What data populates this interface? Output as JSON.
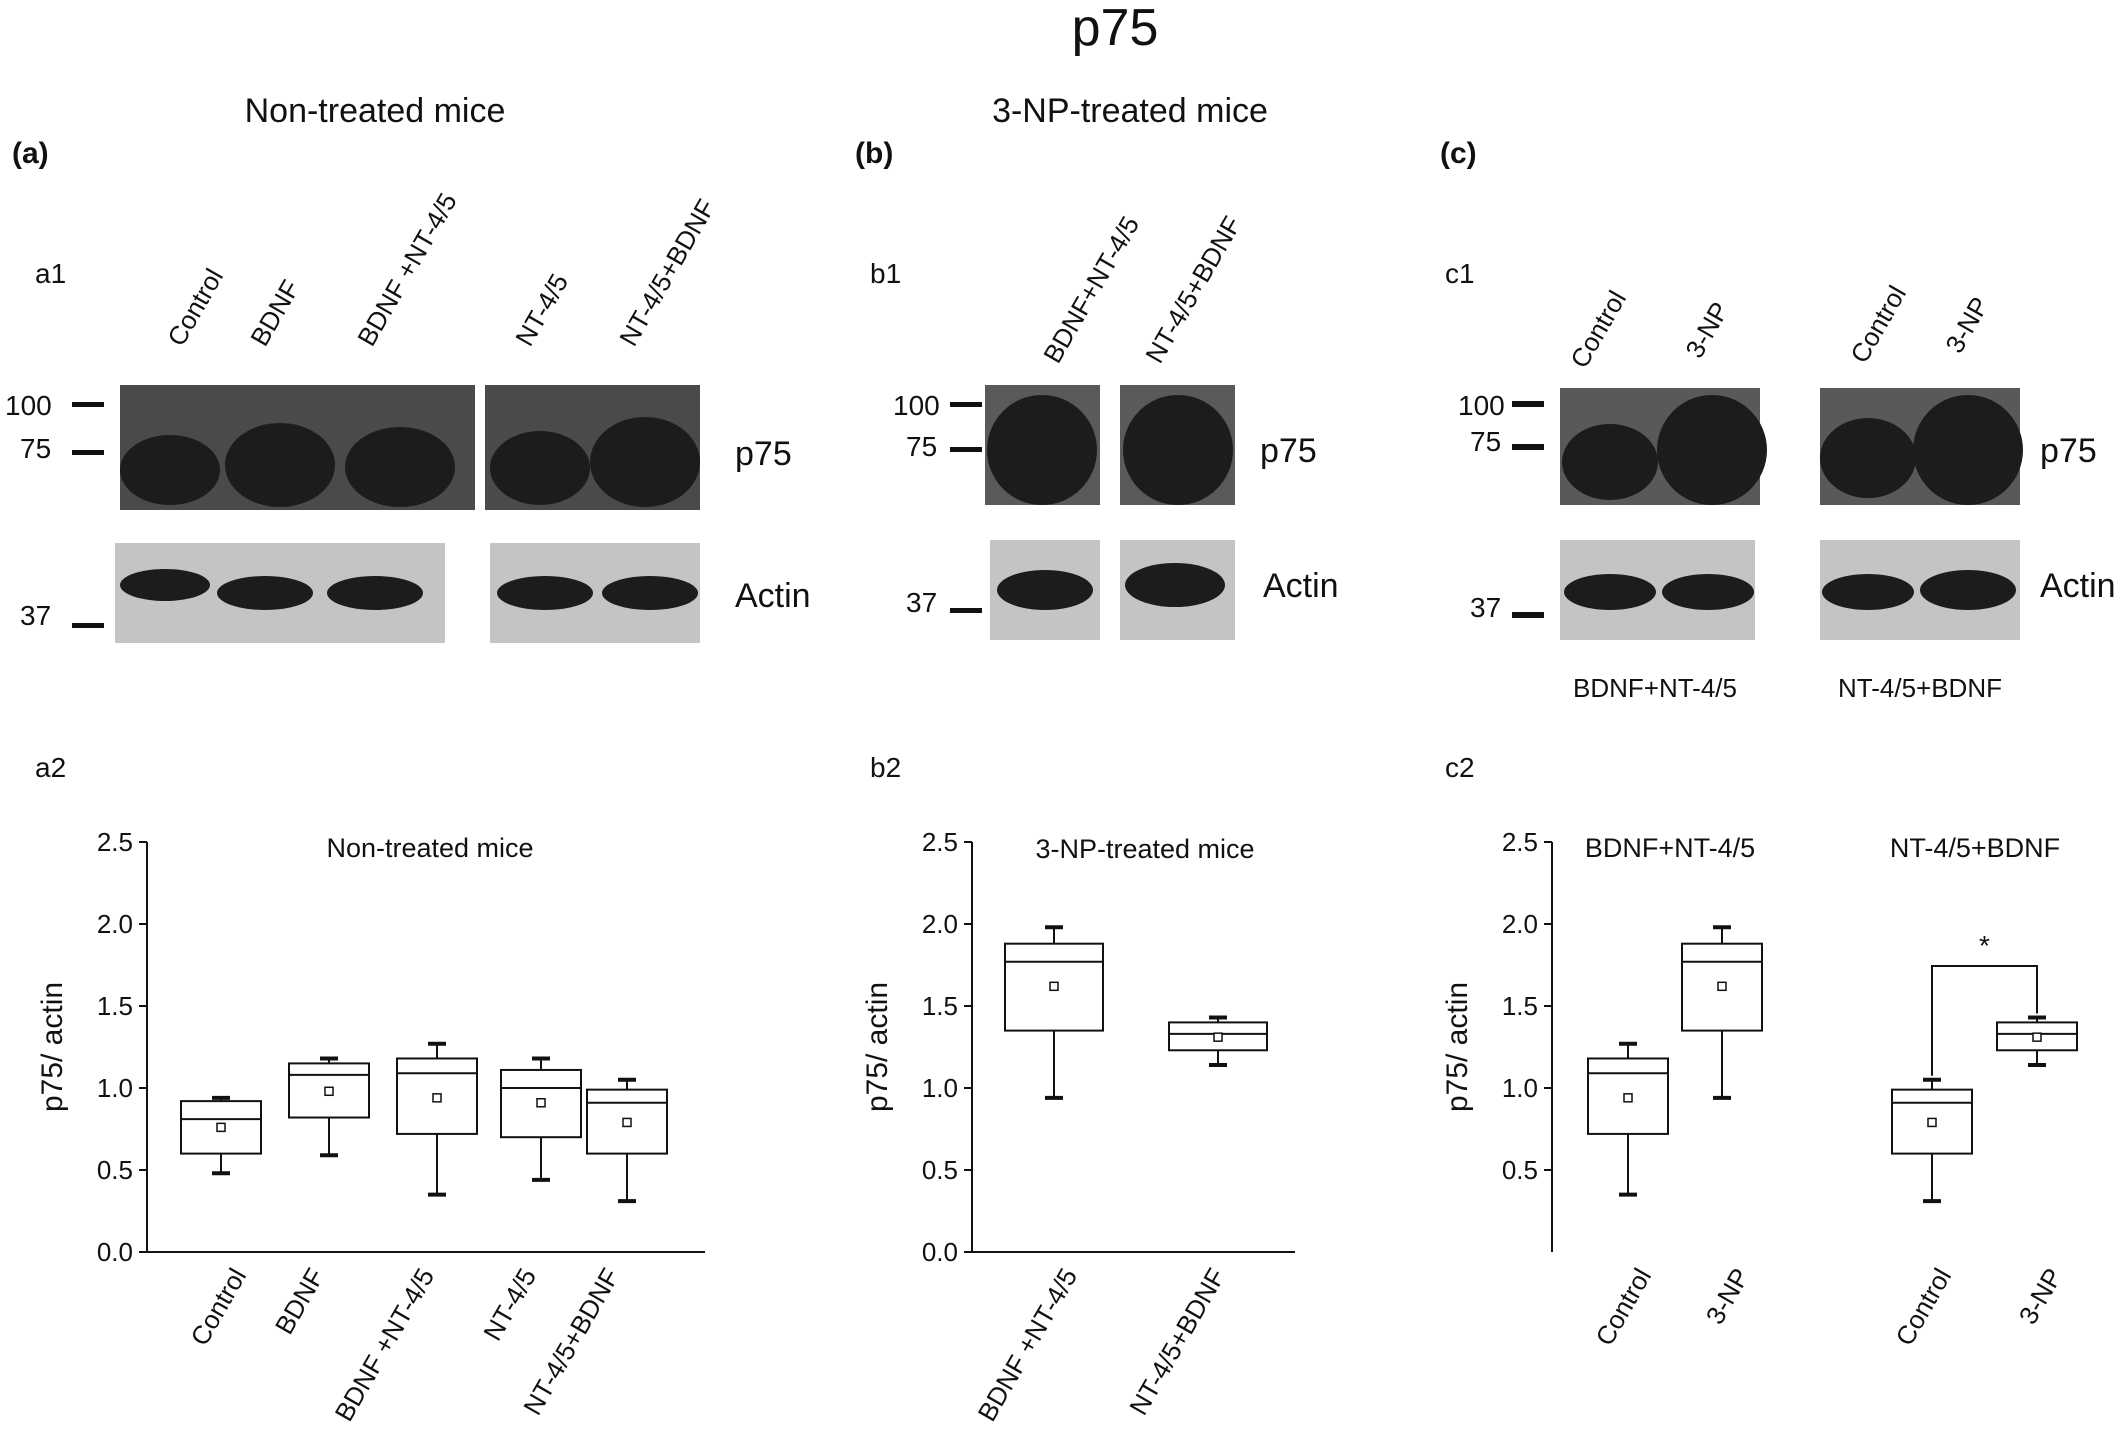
{
  "figure": {
    "title": "p75",
    "panel_a_heading": "Non-treated mice",
    "panel_b_heading": "3-NP-treated mice",
    "panel_a_letter": "(a)",
    "panel_b_letter": "(b)",
    "panel_c_letter": "(c)"
  },
  "blots": {
    "a1": {
      "label": "a1",
      "lanes": [
        "Control",
        "BDNF",
        "BDNF +NT-4/5",
        "NT-4/5",
        "NT-4/5+BDNF"
      ],
      "markers": [
        "100",
        "75",
        "37"
      ],
      "protein_labels": [
        "p75",
        "Actin"
      ]
    },
    "b1": {
      "label": "b1",
      "lanes": [
        "BDNF+NT-4/5",
        "NT-4/5+BDNF"
      ],
      "markers": [
        "100",
        "75",
        "37"
      ],
      "protein_labels": [
        "p75",
        "Actin"
      ]
    },
    "c1": {
      "label": "c1",
      "lanes": [
        "Control",
        "3-NP",
        "Control",
        "3-NP"
      ],
      "markers": [
        "100",
        "75",
        "37"
      ],
      "protein_labels": [
        "p75",
        "Actin"
      ],
      "group_labels": [
        "BDNF+NT-4/5",
        "NT-4/5+BDNF"
      ]
    }
  },
  "chart_data": [
    {
      "panel": "a2",
      "type": "box",
      "title": "Non-treated mice",
      "ylabel": "p75/ actin",
      "ylim": [
        0,
        2.5
      ],
      "yticks": [
        "0.0",
        "0.5",
        "1.0",
        "1.5",
        "2.0",
        "2.5"
      ],
      "categories": [
        "Control",
        "BDNF",
        "BDNF +NT-4/5",
        "NT-4/5",
        "NT-4/5+BDNF"
      ],
      "boxes": [
        {
          "min": 0.48,
          "q1": 0.6,
          "median": 0.81,
          "q3": 0.92,
          "max": 0.94,
          "mean": 0.76
        },
        {
          "min": 0.59,
          "q1": 0.82,
          "median": 1.08,
          "q3": 1.15,
          "max": 1.18,
          "mean": 0.98
        },
        {
          "min": 0.35,
          "q1": 0.72,
          "median": 1.09,
          "q3": 1.18,
          "max": 1.27,
          "mean": 0.94
        },
        {
          "min": 0.44,
          "q1": 0.7,
          "median": 1.0,
          "q3": 1.11,
          "max": 1.18,
          "mean": 0.91
        },
        {
          "min": 0.31,
          "q1": 0.6,
          "median": 0.91,
          "q3": 0.99,
          "max": 1.05,
          "mean": 0.79
        }
      ]
    },
    {
      "panel": "b2",
      "type": "box",
      "title": "3-NP-treated mice",
      "ylabel": "p75/ actin",
      "ylim": [
        0,
        2.5
      ],
      "yticks": [
        "0.0",
        "0.5",
        "1.0",
        "1.5",
        "2.0",
        "2.5"
      ],
      "categories": [
        "BDNF +NT-4/5",
        "NT-4/5+BDNF"
      ],
      "boxes": [
        {
          "min": 0.94,
          "q1": 1.35,
          "median": 1.77,
          "q3": 1.88,
          "max": 1.98,
          "mean": 1.62
        },
        {
          "min": 1.14,
          "q1": 1.23,
          "median": 1.33,
          "q3": 1.4,
          "max": 1.43,
          "mean": 1.31
        }
      ]
    },
    {
      "panel": "c2",
      "type": "box",
      "ylabel": "p75/ actin",
      "ylim": [
        0,
        2.5
      ],
      "yticks": [
        "0.5",
        "1.0",
        "1.5",
        "2.0",
        "2.5"
      ],
      "group_labels": [
        "BDNF+NT-4/5",
        "NT-4/5+BDNF"
      ],
      "categories": [
        "Control",
        "3-NP",
        "Control",
        "3-NP"
      ],
      "boxes": [
        {
          "min": 0.35,
          "q1": 0.72,
          "median": 1.09,
          "q3": 1.18,
          "max": 1.27,
          "mean": 0.94
        },
        {
          "min": 0.94,
          "q1": 1.35,
          "median": 1.77,
          "q3": 1.88,
          "max": 1.98,
          "mean": 1.62
        },
        {
          "min": 0.31,
          "q1": 0.6,
          "median": 0.91,
          "q3": 0.99,
          "max": 1.05,
          "mean": 0.79
        },
        {
          "min": 1.14,
          "q1": 1.23,
          "median": 1.33,
          "q3": 1.4,
          "max": 1.43,
          "mean": 1.31
        }
      ],
      "annotations": [
        {
          "text": "*",
          "between": [
            2,
            3
          ]
        }
      ]
    }
  ]
}
